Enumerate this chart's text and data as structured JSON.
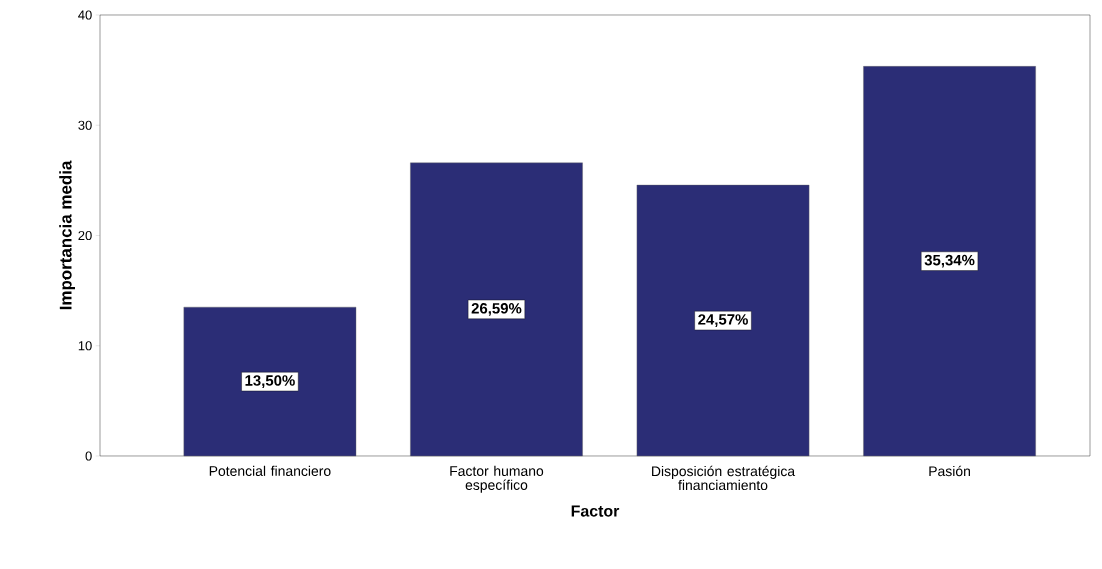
{
  "chart_data": {
    "type": "bar",
    "xlabel": "Factor",
    "ylabel": "Importancia media",
    "categories": [
      "Potencial financiero",
      "Factor humano específico",
      "Disposición estratégica financiamiento",
      "Pasión"
    ],
    "values": [
      13.5,
      26.59,
      24.57,
      35.34
    ],
    "value_labels": [
      "13,50%",
      "26,59%",
      "24,57%",
      "35,34%"
    ],
    "color": "#2b2d76",
    "ylim": [
      0,
      40
    ],
    "yticks": [
      0,
      10,
      20,
      30,
      40
    ],
    "grid": false
  }
}
